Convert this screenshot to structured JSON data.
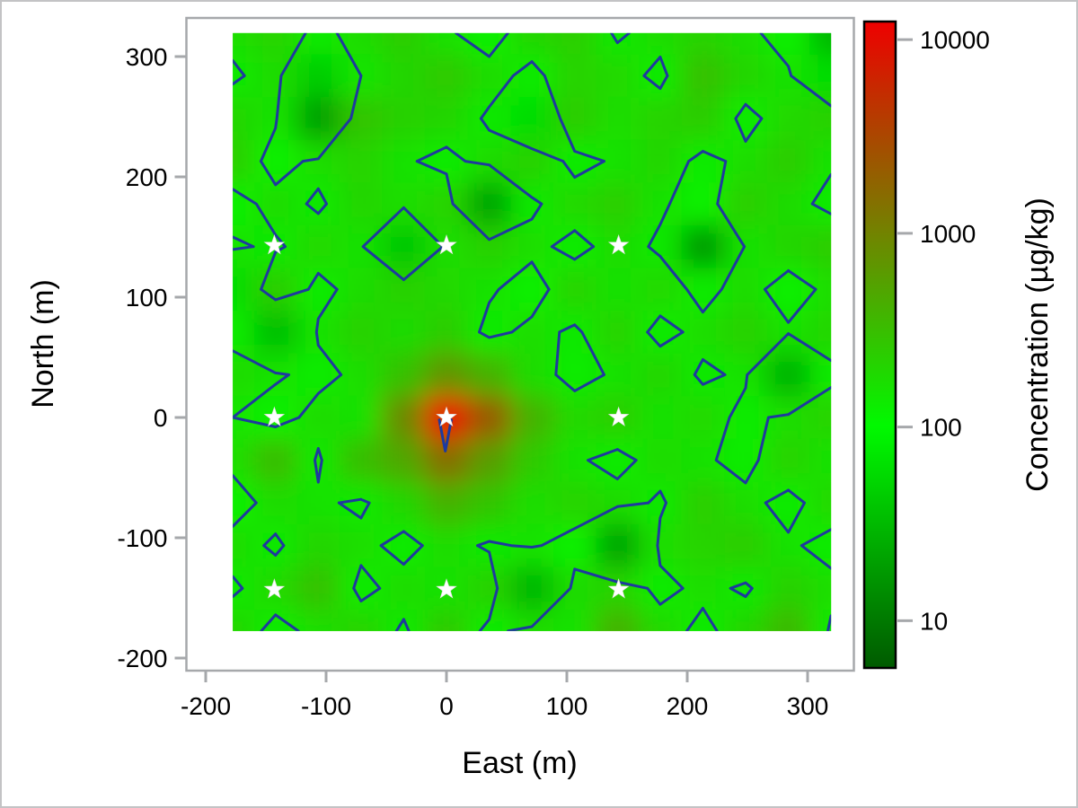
{
  "figure": {
    "kind": "spatial concentration contour heatmap",
    "background": "#ffffff",
    "border_color": "#c3c3c5",
    "axis_color": "#a6a8ab"
  },
  "chart_data": {
    "type": "heatmap",
    "title": "",
    "xlabel": "East (m)",
    "ylabel": "North (m)",
    "x_ticks": [
      -200,
      -100,
      0,
      100,
      200,
      300
    ],
    "y_ticks": [
      300,
      200,
      100,
      0,
      -100,
      -200
    ],
    "x_axis_range": [
      -216,
      338
    ],
    "y_axis_range": [
      -210,
      332
    ],
    "grid": {
      "x_start": -177.5,
      "x_step": 35.5,
      "n_cols": 15,
      "y_start": 319.5,
      "y_step": -35.5,
      "n_rows": 15,
      "units": "µg/kg",
      "values_rows_north_to_south": [
        [
          170,
          210,
          130,
          180,
          240,
          160,
          120,
          200,
          230,
          140,
          180,
          210,
          170,
          120,
          30
        ],
        [
          140,
          180,
          45,
          150,
          200,
          250,
          180,
          130,
          210,
          190,
          130,
          300,
          200,
          160,
          60
        ],
        [
          200,
          160,
          20,
          280,
          220,
          200,
          140,
          60,
          240,
          170,
          210,
          240,
          130,
          190,
          220
        ],
        [
          230,
          120,
          170,
          210,
          160,
          130,
          180,
          220,
          130,
          160,
          200,
          130,
          170,
          240,
          160
        ],
        [
          120,
          180,
          140,
          200,
          170,
          210,
          22,
          140,
          190,
          230,
          160,
          120,
          230,
          180,
          130
        ],
        [
          160,
          140,
          190,
          160,
          40,
          170,
          220,
          170,
          130,
          180,
          140,
          18,
          160,
          200,
          240
        ],
        [
          60,
          240,
          130,
          180,
          220,
          190,
          160,
          120,
          210,
          160,
          190,
          130,
          180,
          120,
          170
        ],
        [
          130,
          35,
          160,
          220,
          180,
          240,
          130,
          170,
          140,
          210,
          130,
          170,
          220,
          160,
          200
        ],
        [
          180,
          160,
          130,
          170,
          300,
          700,
          400,
          180,
          130,
          160,
          200,
          140,
          160,
          28,
          130
        ],
        [
          150,
          120,
          180,
          160,
          900,
          12000,
          2200,
          400,
          190,
          230,
          160,
          190,
          130,
          170,
          210
        ],
        [
          170,
          330,
          140,
          320,
          500,
          1500,
          600,
          250,
          160,
          130,
          180,
          160,
          130,
          210,
          160
        ],
        [
          120,
          180,
          160,
          140,
          200,
          400,
          280,
          170,
          210,
          180,
          140,
          230,
          170,
          130,
          190
        ],
        [
          180,
          140,
          200,
          170,
          130,
          180,
          140,
          160,
          120,
          22,
          170,
          210,
          240,
          160,
          130
        ],
        [
          140,
          190,
          300,
          130,
          180,
          160,
          220,
          30,
          180,
          210,
          130,
          170,
          140,
          220,
          170
        ],
        [
          200,
          130,
          170,
          210,
          140,
          250,
          130,
          180,
          160,
          400,
          190,
          130,
          200,
          350,
          140
        ]
      ]
    },
    "contour": {
      "level": 150,
      "color": "#1e3a9e",
      "extra_path_data_coords": [
        [
          -6,
          -2
        ],
        [
          -1,
          -28
        ],
        [
          4,
          -2
        ]
      ]
    },
    "colorbar": {
      "label": "Concentration (µg/kg)",
      "ticks": [
        10000,
        1000,
        100,
        10
      ],
      "scale": "log",
      "domain_min": 5.7,
      "domain_max": 12400,
      "color_anchors": [
        {
          "value": 5.7,
          "color": "#005a00"
        },
        {
          "value": 100,
          "color": "#00fa00"
        },
        {
          "value": 12400,
          "color": "#ee0000"
        }
      ]
    },
    "markers": {
      "shape": "star",
      "fill": "#ffffff",
      "points": [
        [
          -143,
          143
        ],
        [
          0,
          143
        ],
        [
          143,
          143
        ],
        [
          -143,
          0
        ],
        [
          0,
          0
        ],
        [
          143,
          0
        ],
        [
          -143,
          -143
        ],
        [
          0,
          -143
        ],
        [
          143,
          -143
        ]
      ]
    }
  }
}
